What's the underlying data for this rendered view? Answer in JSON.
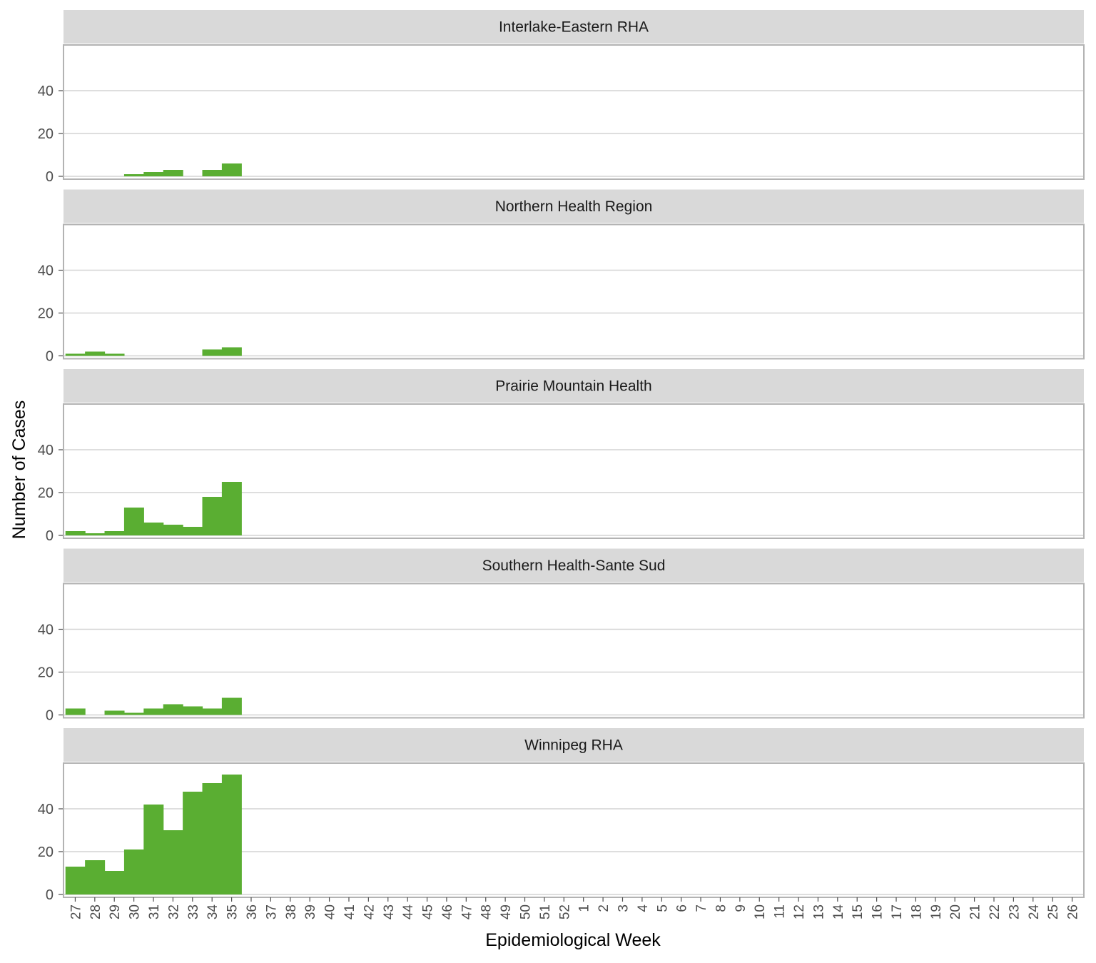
{
  "chart_data": {
    "type": "bar",
    "xlabel": "Epidemiological Week",
    "ylabel": "Number of Cases",
    "ylim": [
      0,
      60
    ],
    "yticks": [
      0,
      20,
      40
    ],
    "grid": true,
    "bar_color": "#5aae32",
    "categories": [
      "27",
      "28",
      "29",
      "30",
      "31",
      "32",
      "33",
      "34",
      "35",
      "36",
      "37",
      "38",
      "39",
      "40",
      "41",
      "42",
      "43",
      "44",
      "45",
      "46",
      "47",
      "48",
      "49",
      "50",
      "51",
      "52",
      "1",
      "2",
      "3",
      "4",
      "5",
      "6",
      "7",
      "8",
      "9",
      "10",
      "11",
      "12",
      "13",
      "14",
      "15",
      "16",
      "17",
      "18",
      "19",
      "20",
      "21",
      "22",
      "23",
      "24",
      "25",
      "26"
    ],
    "panels": [
      {
        "name": "Interlake-Eastern RHA",
        "values": [
          0,
          0,
          0,
          1,
          2,
          3,
          0,
          3,
          6,
          0,
          0,
          0,
          0,
          0,
          0,
          0,
          0,
          0,
          0,
          0,
          0,
          0,
          0,
          0,
          0,
          0,
          0,
          0,
          0,
          0,
          0,
          0,
          0,
          0,
          0,
          0,
          0,
          0,
          0,
          0,
          0,
          0,
          0,
          0,
          0,
          0,
          0,
          0,
          0,
          0,
          0,
          0
        ]
      },
      {
        "name": "Northern Health Region",
        "values": [
          1,
          2,
          1,
          0,
          0,
          0,
          0,
          3,
          4,
          0,
          0,
          0,
          0,
          0,
          0,
          0,
          0,
          0,
          0,
          0,
          0,
          0,
          0,
          0,
          0,
          0,
          0,
          0,
          0,
          0,
          0,
          0,
          0,
          0,
          0,
          0,
          0,
          0,
          0,
          0,
          0,
          0,
          0,
          0,
          0,
          0,
          0,
          0,
          0,
          0,
          0,
          0
        ]
      },
      {
        "name": "Prairie Mountain Health",
        "values": [
          2,
          1,
          2,
          13,
          6,
          5,
          4,
          18,
          25,
          0,
          0,
          0,
          0,
          0,
          0,
          0,
          0,
          0,
          0,
          0,
          0,
          0,
          0,
          0,
          0,
          0,
          0,
          0,
          0,
          0,
          0,
          0,
          0,
          0,
          0,
          0,
          0,
          0,
          0,
          0,
          0,
          0,
          0,
          0,
          0,
          0,
          0,
          0,
          0,
          0,
          0,
          0
        ]
      },
      {
        "name": "Southern Health-Sante Sud",
        "values": [
          3,
          0,
          2,
          1,
          3,
          5,
          4,
          3,
          8,
          0,
          0,
          0,
          0,
          0,
          0,
          0,
          0,
          0,
          0,
          0,
          0,
          0,
          0,
          0,
          0,
          0,
          0,
          0,
          0,
          0,
          0,
          0,
          0,
          0,
          0,
          0,
          0,
          0,
          0,
          0,
          0,
          0,
          0,
          0,
          0,
          0,
          0,
          0,
          0,
          0,
          0,
          0
        ]
      },
      {
        "name": "Winnipeg RHA",
        "values": [
          13,
          16,
          11,
          21,
          42,
          30,
          48,
          52,
          56,
          0,
          0,
          0,
          0,
          0,
          0,
          0,
          0,
          0,
          0,
          0,
          0,
          0,
          0,
          0,
          0,
          0,
          0,
          0,
          0,
          0,
          0,
          0,
          0,
          0,
          0,
          0,
          0,
          0,
          0,
          0,
          0,
          0,
          0,
          0,
          0,
          0,
          0,
          0,
          0,
          0,
          0,
          0
        ]
      }
    ]
  }
}
